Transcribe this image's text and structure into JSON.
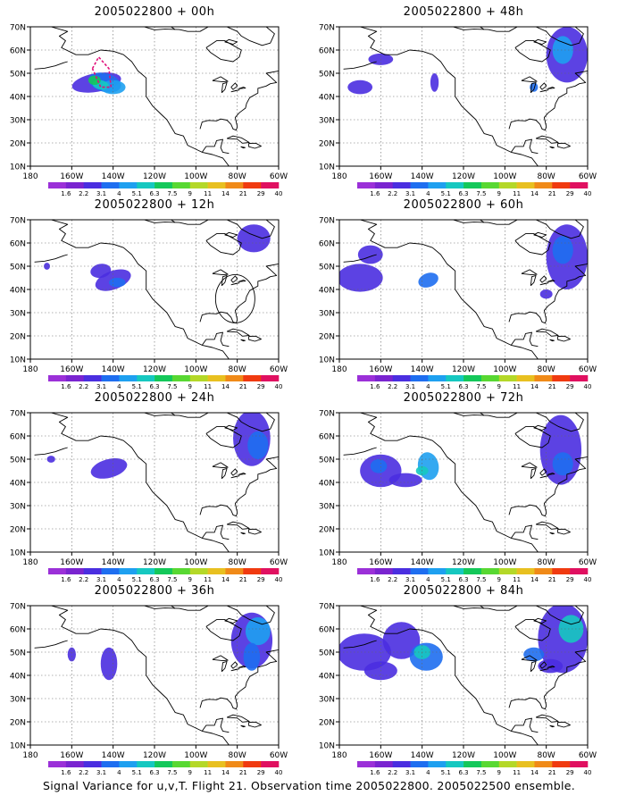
{
  "caption": "Signal Variance for u,v,T. Flight 21. Observation time 2005022800. 2005022500 ensemble.",
  "lat_ticks": [
    "70N",
    "60N",
    "50N",
    "40N",
    "30N",
    "20N",
    "10N"
  ],
  "lon_ticks": [
    "180",
    "160W",
    "140W",
    "120W",
    "100W",
    "80W",
    "60W"
  ],
  "colorbar": {
    "labels": [
      "1.6",
      "2.2",
      "3.1",
      "4",
      "5.1",
      "6.3",
      "7.5",
      "9",
      "11",
      "14",
      "21",
      "29",
      "40"
    ],
    "colors": [
      "#9b30d8",
      "#7a24d0",
      "#4a2ee0",
      "#1e6ef0",
      "#1ea0f0",
      "#16c8c0",
      "#14c85a",
      "#58d832",
      "#b4d828",
      "#e8c020",
      "#f08a18",
      "#f03a10",
      "#e01060"
    ]
  },
  "panels": [
    {
      "title": "2005022800 + 00h"
    },
    {
      "title": "2005022800 + 48h"
    },
    {
      "title": "2005022800 + 12h"
    },
    {
      "title": "2005022800 + 60h"
    },
    {
      "title": "2005022800 + 24h"
    },
    {
      "title": "2005022800 + 72h"
    },
    {
      "title": "2005022800 + 36h"
    },
    {
      "title": "2005022800 + 84h"
    }
  ]
}
